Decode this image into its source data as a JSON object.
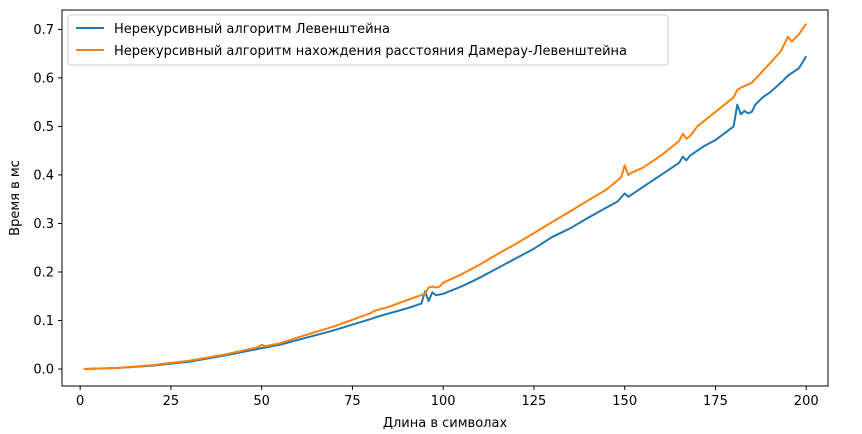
{
  "chart_data": {
    "type": "line",
    "title": "",
    "xlabel": "Длина в символах",
    "ylabel": "Время в мс",
    "xlim": [
      -5,
      206
    ],
    "ylim": [
      -0.035,
      0.74
    ],
    "xticks": [
      0,
      25,
      50,
      75,
      100,
      125,
      150,
      175,
      200
    ],
    "yticks": [
      0.0,
      0.1,
      0.2,
      0.3,
      0.4,
      0.5,
      0.6,
      0.7
    ],
    "xtick_labels": [
      "0",
      "25",
      "50",
      "75",
      "100",
      "125",
      "150",
      "175",
      "200"
    ],
    "ytick_labels": [
      "0.0",
      "0.1",
      "0.2",
      "0.3",
      "0.4",
      "0.5",
      "0.6",
      "0.7"
    ],
    "grid": false,
    "legend_position": "top-left",
    "series": [
      {
        "name": "Нерекурсивный алгоритм Левенштейна",
        "color": "#1f77b4",
        "x": [
          1,
          10,
          20,
          30,
          40,
          50,
          55,
          60,
          70,
          80,
          82,
          90,
          94,
          95,
          96,
          97,
          98,
          100,
          105,
          110,
          115,
          120,
          125,
          130,
          135,
          140,
          145,
          148,
          150,
          151,
          155,
          160,
          165,
          166,
          167,
          168,
          170,
          172,
          175,
          180,
          181,
          182,
          183,
          184,
          185,
          186,
          188,
          190,
          193,
          195,
          198,
          200
        ],
        "y": [
          0.0,
          0.002,
          0.007,
          0.015,
          0.028,
          0.043,
          0.05,
          0.06,
          0.08,
          0.103,
          0.108,
          0.125,
          0.135,
          0.16,
          0.14,
          0.158,
          0.152,
          0.155,
          0.17,
          0.188,
          0.208,
          0.228,
          0.248,
          0.272,
          0.29,
          0.312,
          0.333,
          0.345,
          0.362,
          0.355,
          0.375,
          0.4,
          0.425,
          0.438,
          0.43,
          0.44,
          0.45,
          0.46,
          0.472,
          0.5,
          0.545,
          0.525,
          0.532,
          0.527,
          0.53,
          0.545,
          0.56,
          0.57,
          0.59,
          0.605,
          0.62,
          0.645
        ]
      },
      {
        "name": "Нерекурсивный алгоритм нахождения расстояния Дамерау-Левенштейна",
        "color": "#ff7f0e",
        "x": [
          1,
          10,
          20,
          30,
          40,
          49,
          50,
          51,
          55,
          60,
          70,
          80,
          81,
          85,
          90,
          95,
          96,
          97,
          98,
          99,
          100,
          105,
          110,
          115,
          120,
          125,
          130,
          135,
          140,
          145,
          149,
          150,
          151,
          152,
          155,
          160,
          165,
          166,
          167,
          168,
          170,
          175,
          180,
          181,
          182,
          185,
          190,
          193,
          194,
          195,
          196,
          198,
          200
        ],
        "y": [
          0.0,
          0.002,
          0.008,
          0.017,
          0.03,
          0.045,
          0.05,
          0.047,
          0.053,
          0.065,
          0.088,
          0.115,
          0.12,
          0.128,
          0.142,
          0.155,
          0.168,
          0.17,
          0.168,
          0.17,
          0.178,
          0.195,
          0.215,
          0.237,
          0.258,
          0.28,
          0.303,
          0.325,
          0.348,
          0.37,
          0.395,
          0.42,
          0.4,
          0.405,
          0.415,
          0.44,
          0.47,
          0.485,
          0.475,
          0.48,
          0.5,
          0.53,
          0.56,
          0.575,
          0.58,
          0.59,
          0.63,
          0.655,
          0.67,
          0.685,
          0.675,
          0.69,
          0.712
        ]
      }
    ]
  }
}
